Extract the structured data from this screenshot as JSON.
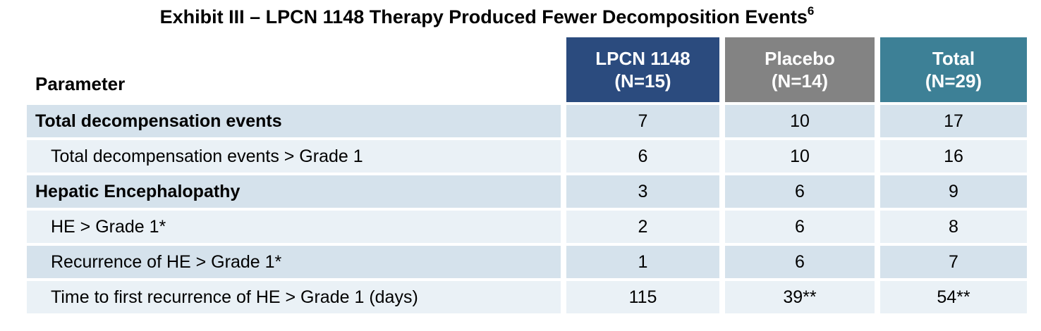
{
  "title": {
    "text": "Exhibit III – LPCN 1148 Therapy Produced Fewer Decomposition Events",
    "superscript": "6"
  },
  "chart_data": {
    "type": "table",
    "title": "Exhibit III – LPCN 1148 Therapy Produced Fewer Decomposition Events",
    "title_superscript": "6",
    "param_header": "Parameter",
    "columns": [
      {
        "line1": "LPCN 1148",
        "line2": "(N=15)",
        "color": "#2b4b7e"
      },
      {
        "line1": "Placebo",
        "line2": "(N=14)",
        "color": "#838383"
      },
      {
        "line1": "Total",
        "line2": "(N=29)",
        "color": "#3d8096"
      }
    ],
    "rows": [
      {
        "label": "Total decompensation events",
        "bold": true,
        "indent": false,
        "values": [
          "7",
          "10",
          "17"
        ]
      },
      {
        "label": "Total decompensation events > Grade 1",
        "bold": false,
        "indent": true,
        "values": [
          "6",
          "10",
          "16"
        ]
      },
      {
        "label": "Hepatic Encephalopathy",
        "bold": true,
        "indent": false,
        "values": [
          "3",
          "6",
          "9"
        ]
      },
      {
        "label": "HE > Grade 1*",
        "bold": false,
        "indent": true,
        "values": [
          "2",
          "6",
          "8"
        ]
      },
      {
        "label": "Recurrence of HE > Grade 1*",
        "bold": false,
        "indent": true,
        "values": [
          "1",
          "6",
          "7"
        ]
      },
      {
        "label": "Time to first recurrence of HE > Grade 1 (days)",
        "bold": false,
        "indent": true,
        "values": [
          "115",
          "39**",
          "54**"
        ]
      }
    ]
  },
  "colors": {
    "row_dark": "#d5e2ec",
    "row_light": "#eaf1f6",
    "text": "#000000",
    "header_text": "#ffffff"
  }
}
